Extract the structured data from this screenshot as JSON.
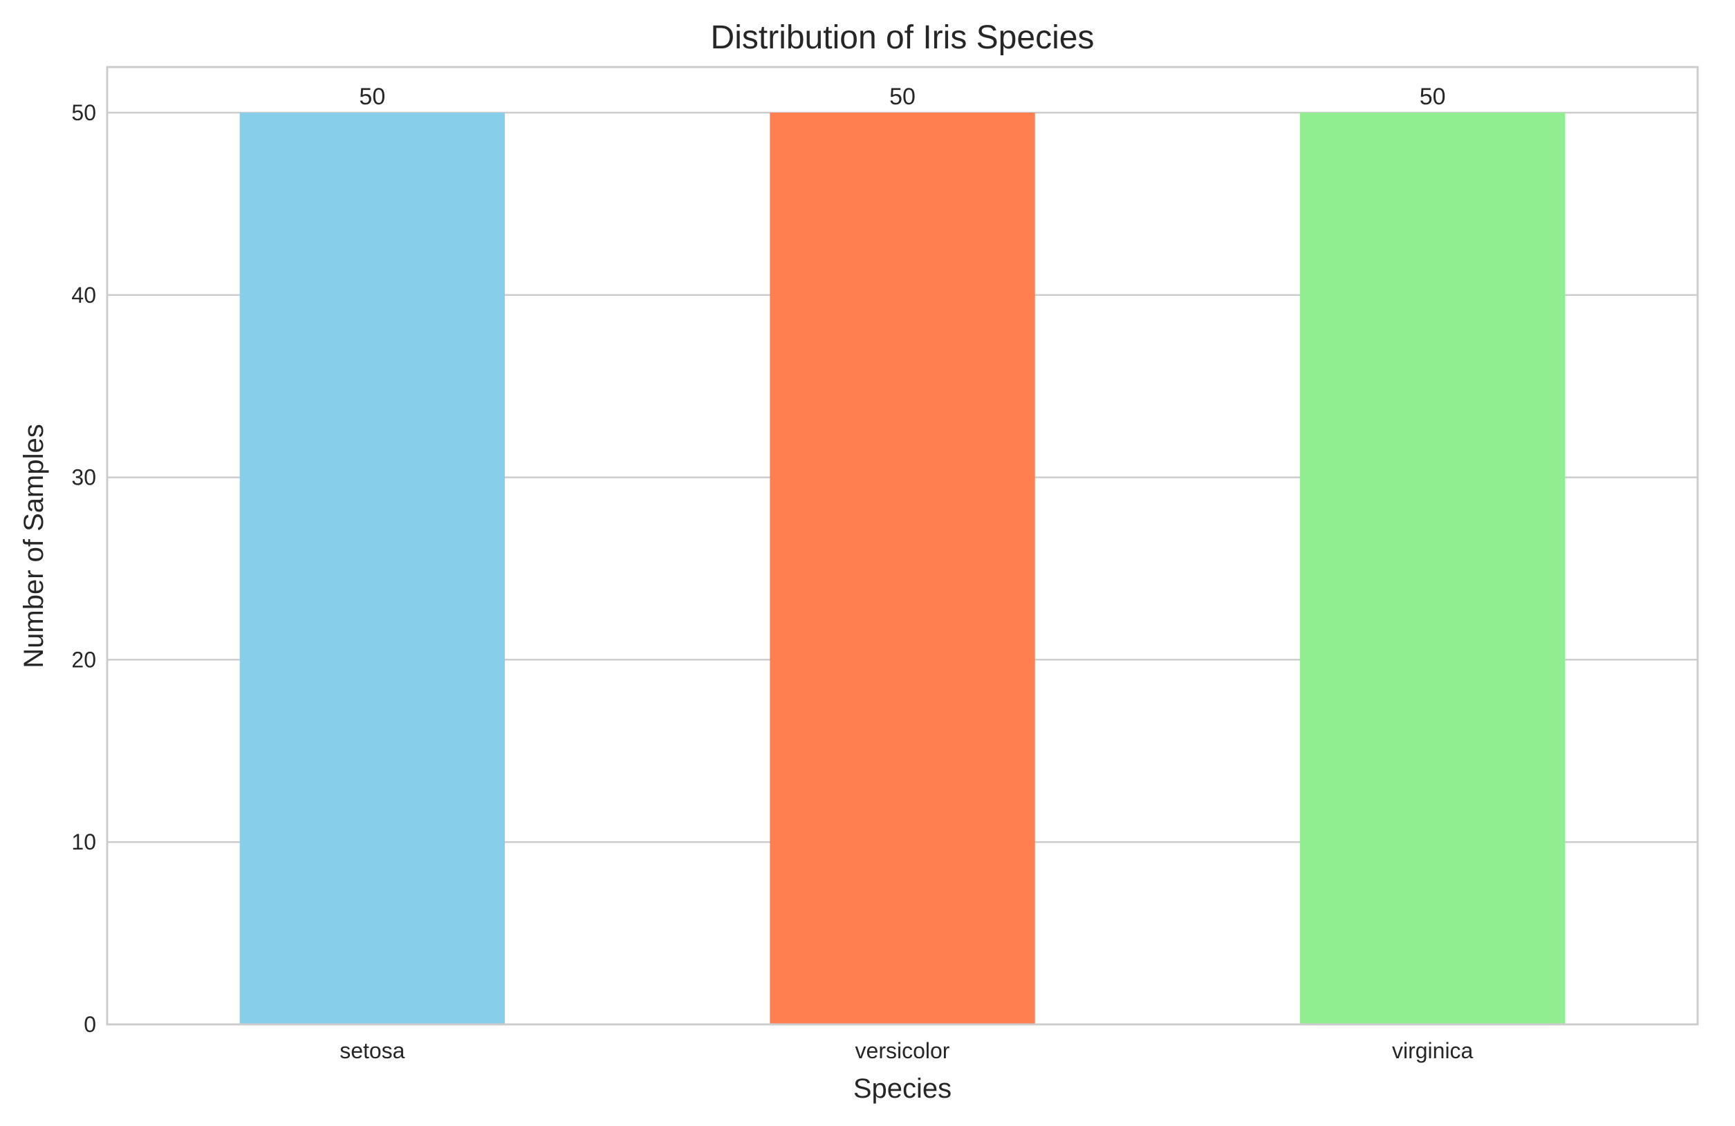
{
  "chart_data": {
    "type": "bar",
    "title": "Distribution of Iris Species",
    "xlabel": "Species",
    "ylabel": "Number of Samples",
    "categories": [
      "setosa",
      "versicolor",
      "virginica"
    ],
    "values": [
      50,
      50,
      50
    ],
    "data_labels": [
      "50",
      "50",
      "50"
    ],
    "colors": [
      "#87ceeb",
      "#ff7f50",
      "#90ee90"
    ],
    "ylim": [
      0,
      52.5
    ],
    "yticks": [
      0,
      10,
      20,
      30,
      40,
      50
    ],
    "grid": "horizontal",
    "legend": "none"
  }
}
